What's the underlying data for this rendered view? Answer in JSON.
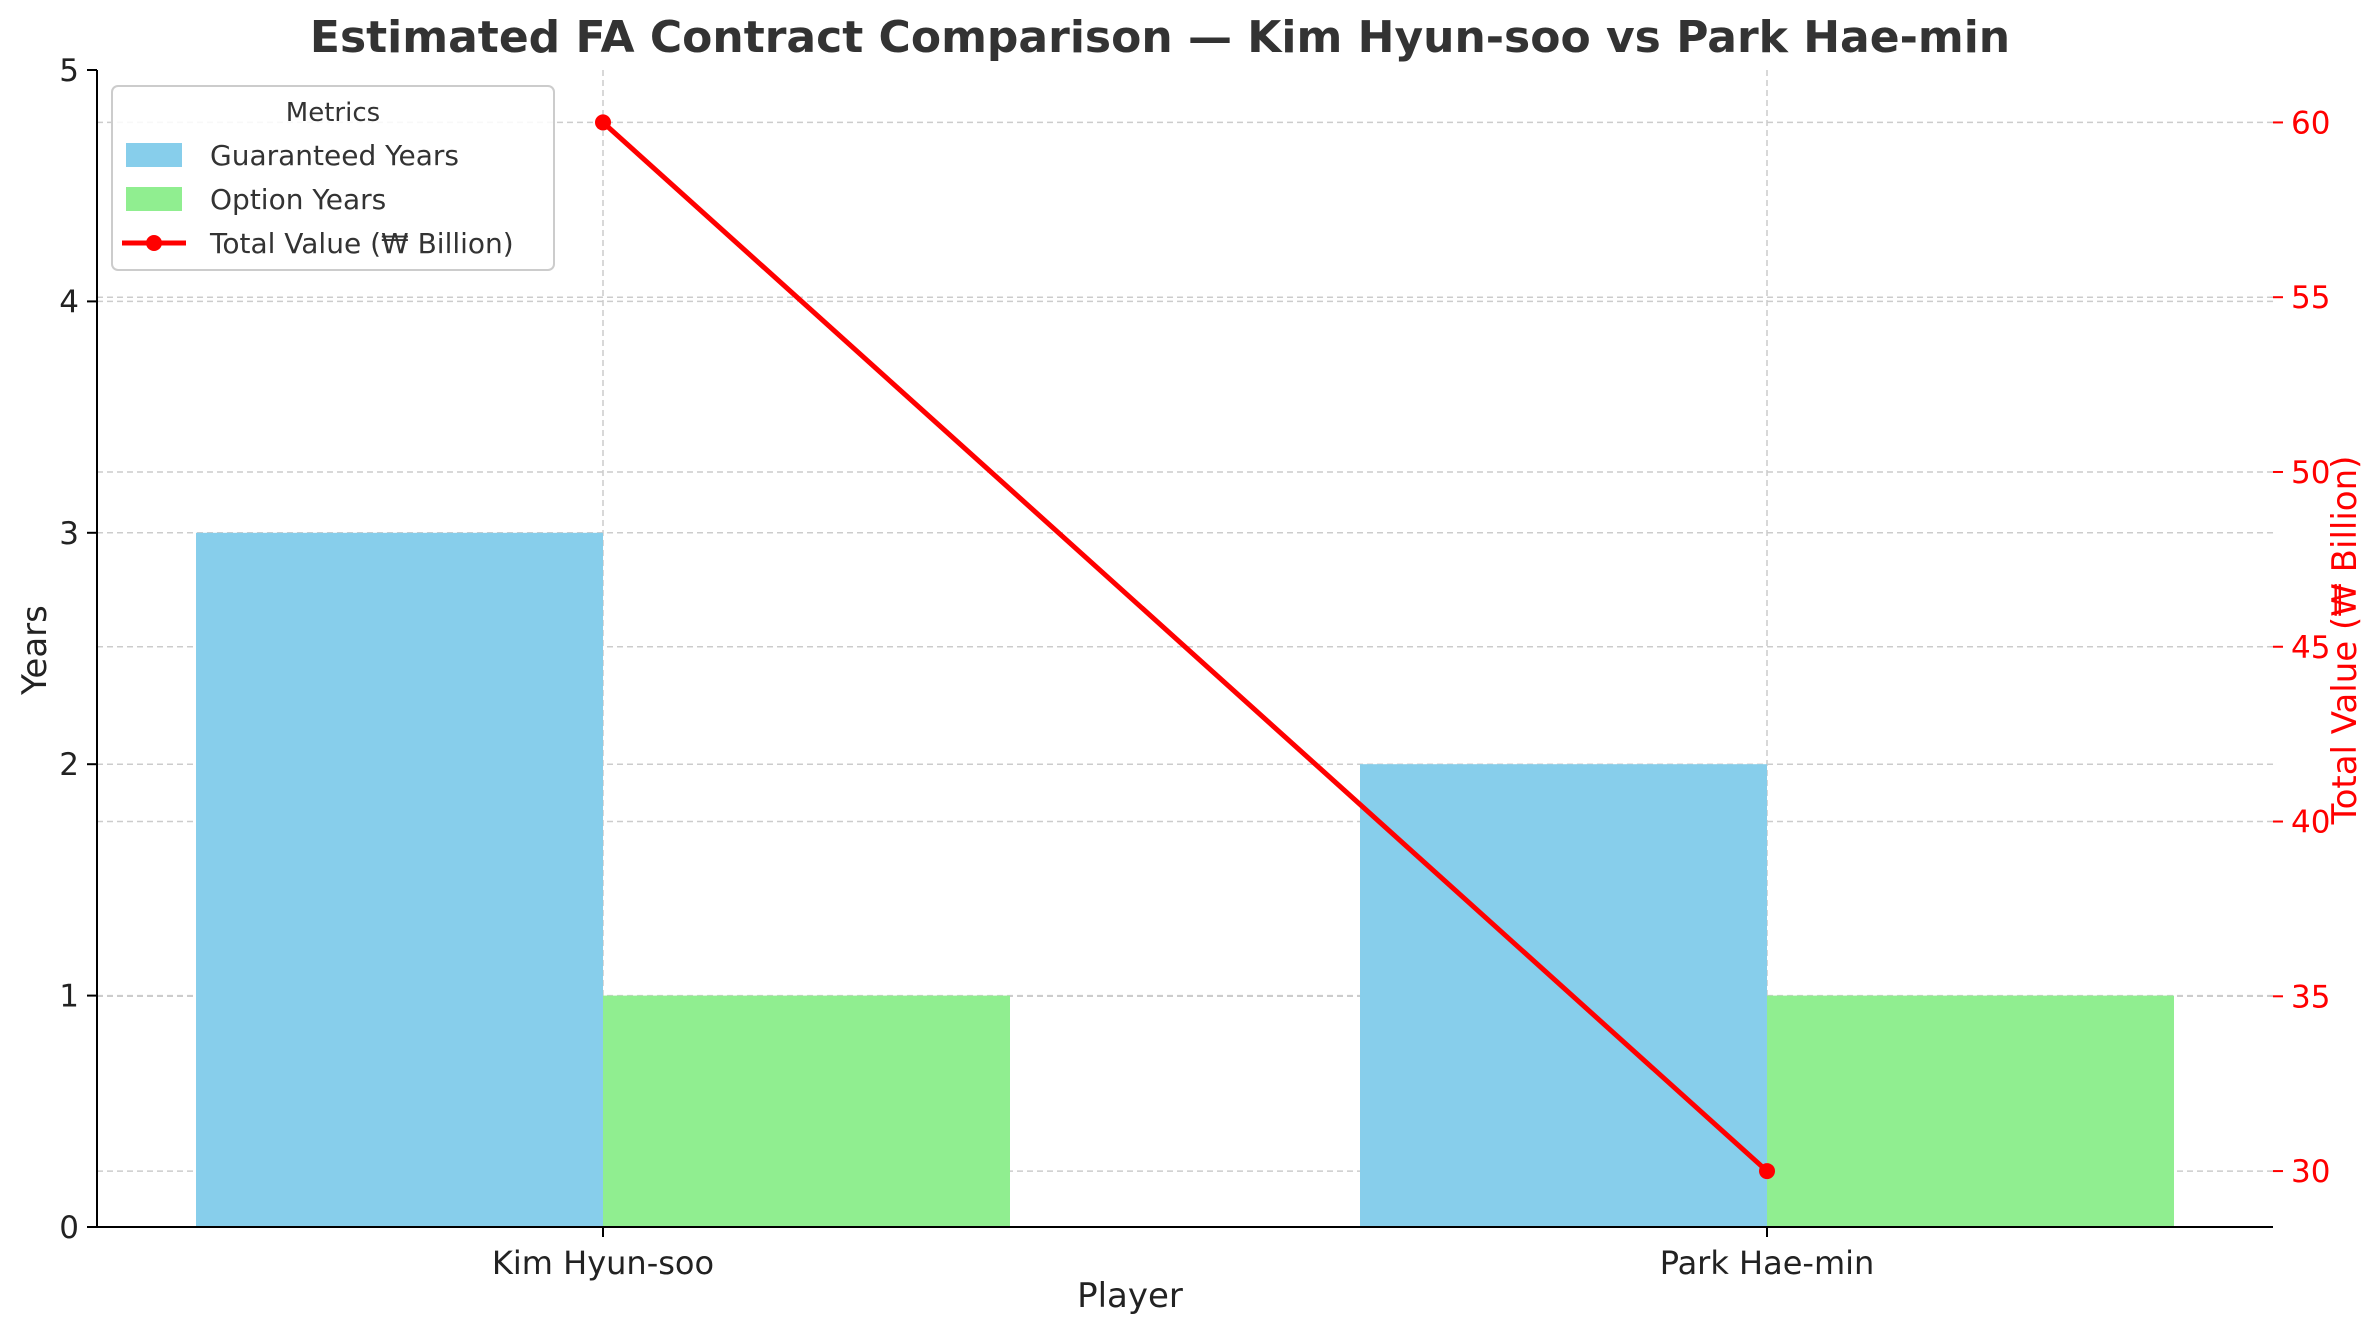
{
  "chart_data": {
    "type": "bar",
    "title": "Estimated FA Contract Comparison — Kim Hyun-soo vs Park Hae-min",
    "xlabel": "Player",
    "ylabel": "Years",
    "y2label": "Total Value (₩ Billion)",
    "categories": [
      "Kim Hyun-soo",
      "Park Hae-min"
    ],
    "ylim": [
      0,
      5
    ],
    "y_ticks": [
      "0",
      "1",
      "2",
      "3",
      "4",
      "5"
    ],
    "y2lim": [
      28.4,
      61.5
    ],
    "y2_ticks": [
      "30",
      "35",
      "40",
      "45",
      "50",
      "55",
      "60"
    ],
    "series": [
      {
        "name": "Guaranteed Years",
        "type": "bar",
        "axis": "left",
        "color": "#87CEEB",
        "values": [
          3,
          2
        ]
      },
      {
        "name": "Option Years",
        "type": "bar",
        "axis": "left",
        "color": "#90EE90",
        "values": [
          1,
          1
        ]
      },
      {
        "name": "Total Value (₩ Billion)",
        "type": "line",
        "axis": "right",
        "color": "#FF0000",
        "values": [
          60,
          30
        ]
      }
    ],
    "legend": {
      "title": "Metrics",
      "position": "top-left"
    },
    "grid": true,
    "colors": {
      "accent_axis": "#FF0000"
    }
  }
}
